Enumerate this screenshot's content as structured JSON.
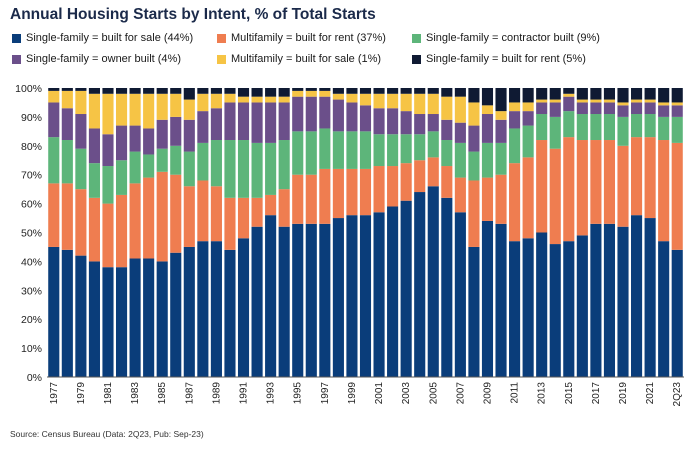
{
  "chart_data": {
    "type": "stacked-bar",
    "title": "Annual Housing Starts by Intent, % of Total Starts",
    "source": "Source: Census Bureau (Data: 2Q23, Pub: Sep-23)",
    "ylim": [
      0,
      100
    ],
    "yticks": [
      "0%",
      "10%",
      "20%",
      "30%",
      "40%",
      "50%",
      "60%",
      "70%",
      "80%",
      "90%",
      "100%"
    ],
    "ytick_values": [
      0,
      10,
      20,
      30,
      40,
      50,
      60,
      70,
      80,
      90,
      100
    ],
    "categories": [
      "1977",
      "1978",
      "1979",
      "1980",
      "1981",
      "1982",
      "1983",
      "1984",
      "1985",
      "1986",
      "1987",
      "1988",
      "1989",
      "1990",
      "1991",
      "1992",
      "1993",
      "1994",
      "1995",
      "1996",
      "1997",
      "1998",
      "1999",
      "2000",
      "2001",
      "2002",
      "2003",
      "2004",
      "2005",
      "2006",
      "2007",
      "2008",
      "2009",
      "2010",
      "2011",
      "2012",
      "2013",
      "2014",
      "2015",
      "2016",
      "2017",
      "2018",
      "2019",
      "2020",
      "2021",
      "2022",
      "2Q23"
    ],
    "xtick_labels": [
      "1977",
      "1979",
      "1981",
      "1983",
      "1985",
      "1987",
      "1989",
      "1991",
      "1993",
      "1995",
      "1997",
      "1999",
      "2001",
      "2003",
      "2005",
      "2007",
      "2009",
      "2011",
      "2013",
      "2015",
      "2017",
      "2019",
      "2021",
      "2Q23"
    ],
    "series": [
      {
        "name": "Single-family = built for sale (44%)",
        "color": "#0a3d7a",
        "values": [
          45,
          44,
          42,
          40,
          38,
          38,
          41,
          41,
          40,
          43,
          45,
          47,
          47,
          44,
          48,
          52,
          56,
          52,
          53,
          53,
          53,
          55,
          56,
          56,
          57,
          59,
          61,
          64,
          66,
          62,
          57,
          45,
          54,
          53,
          47,
          48,
          50,
          46,
          47,
          49,
          53,
          53,
          52,
          56,
          55,
          47,
          44
        ]
      },
      {
        "name": "Multifamily = built for rent (37%)",
        "color": "#ef7d50",
        "values": [
          22,
          23,
          23,
          22,
          22,
          25,
          26,
          28,
          31,
          27,
          21,
          21,
          19,
          18,
          14,
          10,
          7,
          13,
          17,
          17,
          19,
          17,
          16,
          16,
          16,
          14,
          13,
          11,
          10,
          11,
          12,
          23,
          15,
          17,
          27,
          28,
          32,
          33,
          36,
          33,
          29,
          29,
          28,
          27,
          28,
          35,
          37
        ]
      },
      {
        "name": "Single-family = contractor built (9%)",
        "color": "#5db57a",
        "values": [
          16,
          15,
          14,
          12,
          13,
          12,
          11,
          8,
          8,
          10,
          12,
          13,
          16,
          20,
          20,
          19,
          18,
          17,
          15,
          15,
          14,
          13,
          13,
          13,
          11,
          11,
          10,
          9,
          9,
          9,
          12,
          10,
          12,
          11,
          12,
          11,
          9,
          11,
          9,
          9,
          9,
          9,
          10,
          8,
          8,
          8,
          9
        ]
      },
      {
        "name": "Single-family = owner built (4%)",
        "color": "#6b4f8a",
        "values": [
          12,
          11,
          12,
          12,
          11,
          12,
          9,
          9,
          10,
          10,
          11,
          11,
          11,
          13,
          13,
          14,
          14,
          13,
          12,
          12,
          11,
          11,
          10,
          9,
          9,
          9,
          8,
          7,
          6,
          7,
          7,
          9,
          10,
          8,
          6,
          5,
          4,
          5,
          5,
          4,
          4,
          4,
          4,
          4,
          4,
          4,
          4
        ]
      },
      {
        "name": "Multifamily = built for sale (1%)",
        "color": "#f6c445",
        "values": [
          4,
          6,
          8,
          12,
          14,
          11,
          11,
          12,
          9,
          8,
          7,
          6,
          5,
          3,
          2,
          2,
          2,
          2,
          2,
          2,
          2,
          2,
          3,
          4,
          5,
          5,
          6,
          7,
          7,
          8,
          9,
          8,
          3,
          3,
          3,
          3,
          1,
          1,
          1,
          1,
          1,
          1,
          1,
          1,
          1,
          1,
          1
        ]
      },
      {
        "name": "Single-family = built for rent (5%)",
        "color": "#0f1a33",
        "values": [
          1,
          1,
          1,
          2,
          2,
          2,
          2,
          2,
          2,
          2,
          4,
          2,
          2,
          2,
          3,
          3,
          3,
          3,
          1,
          1,
          1,
          2,
          2,
          2,
          2,
          2,
          2,
          2,
          2,
          3,
          3,
          5,
          6,
          8,
          5,
          5,
          4,
          4,
          2,
          4,
          4,
          4,
          5,
          4,
          4,
          5,
          5
        ]
      }
    ]
  }
}
